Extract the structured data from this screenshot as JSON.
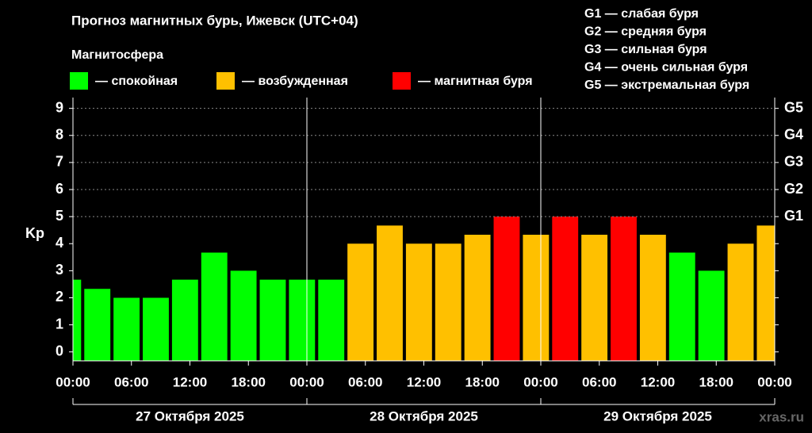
{
  "chart_data": {
    "type": "bar",
    "title": "Прогноз магнитных бурь, Ижевск (UTC+04)",
    "subtitle": "Магнитосфера",
    "y_label": "Kp",
    "watermark": "xras.ru",
    "legend": [
      {
        "label": "— спокойная",
        "color": "#00ff00"
      },
      {
        "label": "— возбужденная",
        "color": "#ffc000"
      },
      {
        "label": "— магнитная буря",
        "color": "#ff0000"
      }
    ],
    "storm_legend": [
      "G1 — слабая буря",
      "G2 — средняя буря",
      "G3 — сильная буря",
      "G4 — очень сильная буря",
      "G5 — экстремальная буря"
    ],
    "x": [
      -0.5,
      2.5,
      5.5,
      8.5,
      11.5,
      14.5,
      17.5,
      20.5,
      23.5,
      26.5,
      29.5,
      32.5,
      35.5,
      38.5,
      41.5,
      44.5,
      47.5,
      50.5,
      53.5,
      56.5,
      59.5,
      62.5,
      65.5,
      68.5,
      71.5
    ],
    "values": [
      2.67,
      2.33,
      2,
      2,
      2.67,
      3.67,
      3,
      2.67,
      2.67,
      2.67,
      4,
      4.67,
      4,
      4,
      4.33,
      5,
      4.33,
      5,
      4.33,
      5,
      4.33,
      3.67,
      3,
      4,
      4.67
    ],
    "colors": [
      "#00ff00",
      "#00ff00",
      "#00ff00",
      "#00ff00",
      "#00ff00",
      "#00ff00",
      "#00ff00",
      "#00ff00",
      "#00ff00",
      "#00ff00",
      "#ffc000",
      "#ffc000",
      "#ffc000",
      "#ffc000",
      "#ffc000",
      "#ff0000",
      "#ffc000",
      "#ff0000",
      "#ffc000",
      "#ff0000",
      "#ffc000",
      "#00ff00",
      "#00ff00",
      "#ffc000",
      "#ffc000"
    ],
    "xlim": [
      0,
      72
    ],
    "xticks": [
      {
        "value": 0,
        "label": "00:00"
      },
      {
        "value": 6,
        "label": "06:00"
      },
      {
        "value": 12,
        "label": "12:00"
      },
      {
        "value": 18,
        "label": "18:00"
      },
      {
        "value": 24,
        "label": "00:00"
      },
      {
        "value": 30,
        "label": "06:00"
      },
      {
        "value": 36,
        "label": "12:00"
      },
      {
        "value": 42,
        "label": "18:00"
      },
      {
        "value": 48,
        "label": "00:00"
      },
      {
        "value": 54,
        "label": "06:00"
      },
      {
        "value": 60,
        "label": "12:00"
      },
      {
        "value": 66,
        "label": "18:00"
      },
      {
        "value": 72,
        "label": "00:00"
      }
    ],
    "days": [
      "27 Октября 2025",
      "28 Октября 2025",
      "29 Октября 2025"
    ],
    "ylim": [
      -0.33,
      9.4
    ],
    "yticks": [
      0,
      1,
      2,
      3,
      4,
      5,
      6,
      7,
      8,
      9
    ],
    "y2ticks": [
      {
        "value": 5,
        "label": "G1"
      },
      {
        "value": 6,
        "label": "G2"
      },
      {
        "value": 7,
        "label": "G3"
      },
      {
        "value": 8,
        "label": "G4"
      },
      {
        "value": 9,
        "label": "G5"
      }
    ],
    "grid": true
  }
}
